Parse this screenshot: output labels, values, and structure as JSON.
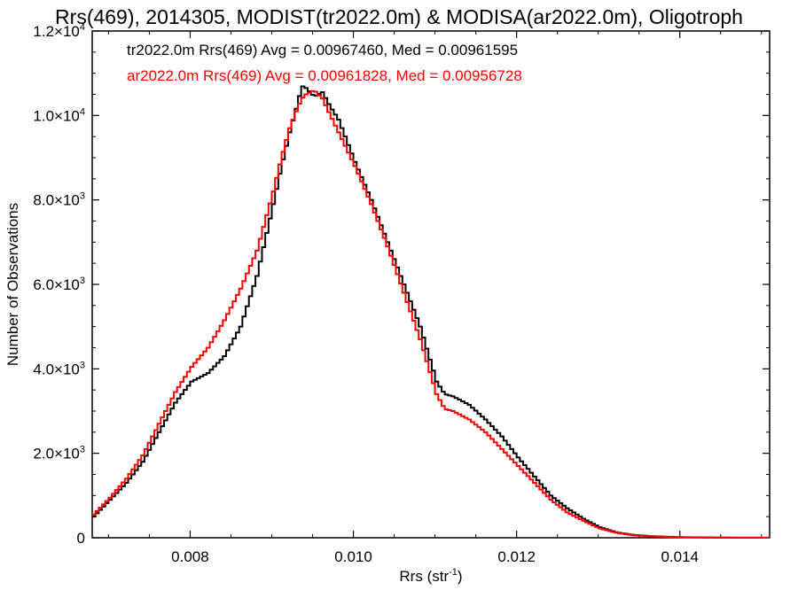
{
  "chart_data": {
    "type": "line",
    "title": "Rrs(469), 2014305, MODIST(tr2022.0m) & MODISA(ar2022.0m), Oligotroph",
    "xlabel": {
      "base": "Rrs (str",
      "sup": "-1",
      "close": ")"
    },
    "ylabel": "Number of Observations",
    "xlim": [
      0.0068,
      0.0151
    ],
    "ylim": [
      0,
      12000
    ],
    "x_ticks": [
      {
        "value": 0.008,
        "label": "0.008"
      },
      {
        "value": 0.01,
        "label": "0.010"
      },
      {
        "value": 0.012,
        "label": "0.012"
      },
      {
        "value": 0.014,
        "label": "0.014"
      }
    ],
    "y_ticks": [
      {
        "value": 0,
        "mant": "0",
        "exp": ""
      },
      {
        "value": 2000,
        "mant": "2.0",
        "exp": "3"
      },
      {
        "value": 4000,
        "mant": "4.0",
        "exp": "3"
      },
      {
        "value": 6000,
        "mant": "6.0",
        "exp": "3"
      },
      {
        "value": 8000,
        "mant": "8.0",
        "exp": "3"
      },
      {
        "value": 10000,
        "mant": "1.0",
        "exp": "4"
      },
      {
        "value": 12000,
        "mant": "1.2",
        "exp": "4"
      }
    ],
    "legend_position": "top-left",
    "series": [
      {
        "name": "tr2022.0m Rrs(469) Avg = 0.00967460, Med = 0.00961595",
        "color": "#000000",
        "x": [
          0.0068,
          0.007,
          0.0072,
          0.0074,
          0.0076,
          0.0078,
          0.008,
          0.0082,
          0.0084,
          0.0086,
          0.0088,
          0.009,
          0.0091,
          0.0092,
          0.0093,
          0.00935,
          0.0094,
          0.0095,
          0.0096,
          0.0097,
          0.0098,
          0.01,
          0.0102,
          0.0104,
          0.0106,
          0.0108,
          0.011,
          0.0111,
          0.0112,
          0.0114,
          0.0116,
          0.0118,
          0.012,
          0.0122,
          0.0124,
          0.0126,
          0.0128,
          0.013,
          0.0132,
          0.0134,
          0.0136,
          0.0138,
          0.014,
          0.0142,
          0.0144,
          0.0146,
          0.0148,
          0.0151
        ],
        "y": [
          500,
          900,
          1300,
          1800,
          2500,
          3200,
          3700,
          3900,
          4300,
          5000,
          6200,
          7900,
          8800,
          9600,
          10300,
          10700,
          10650,
          10450,
          10550,
          10200,
          9900,
          8900,
          8000,
          7000,
          6000,
          5000,
          3700,
          3400,
          3350,
          3150,
          2800,
          2400,
          1900,
          1450,
          1000,
          700,
          450,
          250,
          130,
          70,
          40,
          25,
          15,
          10,
          6,
          4,
          3,
          2
        ]
      },
      {
        "name": "ar2022.0m Rrs(469) Avg = 0.00961828, Med = 0.00956728",
        "color": "#ff0000",
        "x": [
          0.0068,
          0.007,
          0.0072,
          0.0074,
          0.0076,
          0.0078,
          0.008,
          0.0082,
          0.0084,
          0.0086,
          0.0088,
          0.009,
          0.0091,
          0.0092,
          0.0093,
          0.00935,
          0.0094,
          0.0095,
          0.0096,
          0.0097,
          0.0098,
          0.01,
          0.0102,
          0.0104,
          0.0106,
          0.0108,
          0.011,
          0.0111,
          0.0112,
          0.0114,
          0.0116,
          0.0118,
          0.012,
          0.0122,
          0.0124,
          0.0126,
          0.0128,
          0.013,
          0.0132,
          0.0134,
          0.0136,
          0.0138,
          0.014,
          0.0142,
          0.0144,
          0.0146,
          0.0148,
          0.0151
        ],
        "y": [
          550,
          950,
          1400,
          1950,
          2700,
          3450,
          4050,
          4500,
          5150,
          5900,
          6800,
          8200,
          9000,
          9700,
          10200,
          10400,
          10500,
          10600,
          10400,
          10000,
          9600,
          8800,
          7900,
          6900,
          5800,
          4700,
          3400,
          3050,
          3000,
          2800,
          2500,
          2100,
          1700,
          1300,
          900,
          600,
          400,
          220,
          120,
          60,
          35,
          20,
          12,
          8,
          5,
          3,
          2,
          1
        ]
      }
    ]
  }
}
